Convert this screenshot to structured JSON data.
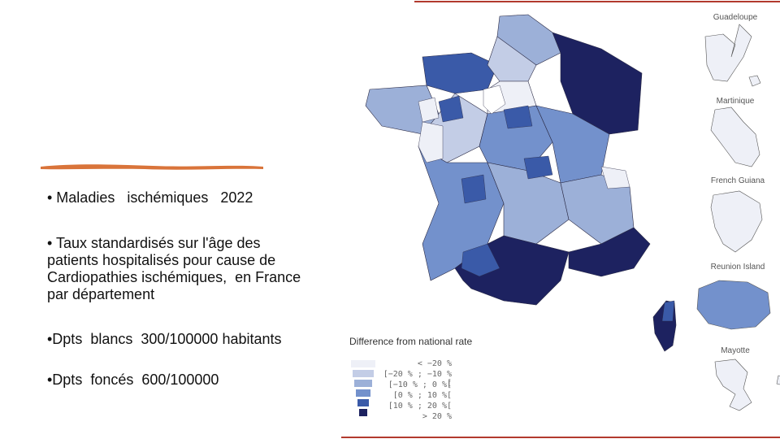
{
  "bullets": {
    "b1": "• Maladies   ischémiques   2022",
    "b2": "• Taux standardisés sur l'âge des patients hospitalisés pour cause de Cardiopathies ischémiques,  en France par département",
    "b3": "•Dpts  blancs  300/100000 habitants",
    "b4": "•Dpts  foncés  600/100000"
  },
  "legend": {
    "title": "Difference from national rate",
    "items": [
      "< −20 %",
      "[−20 % ; −10 %[",
      "[−10 % ; 0 %[",
      "[0 % ; 10 %[",
      "[10 % ; 20 %[",
      "> 20 %"
    ],
    "colors": [
      "#eef0f7",
      "#c3cde6",
      "#9cb0d8",
      "#7391cc",
      "#3a5aa8",
      "#1d2260"
    ]
  },
  "insets": {
    "guadeloupe": "Guadeloupe",
    "martinique": "Martinique",
    "guiana": "French Guiana",
    "reunion": "Reunion Island",
    "mayotte": "Mayotte"
  },
  "colors": {
    "accent_brush": "#d9743a",
    "rule": "#b23a2e",
    "map_border": "#2b2b46"
  }
}
